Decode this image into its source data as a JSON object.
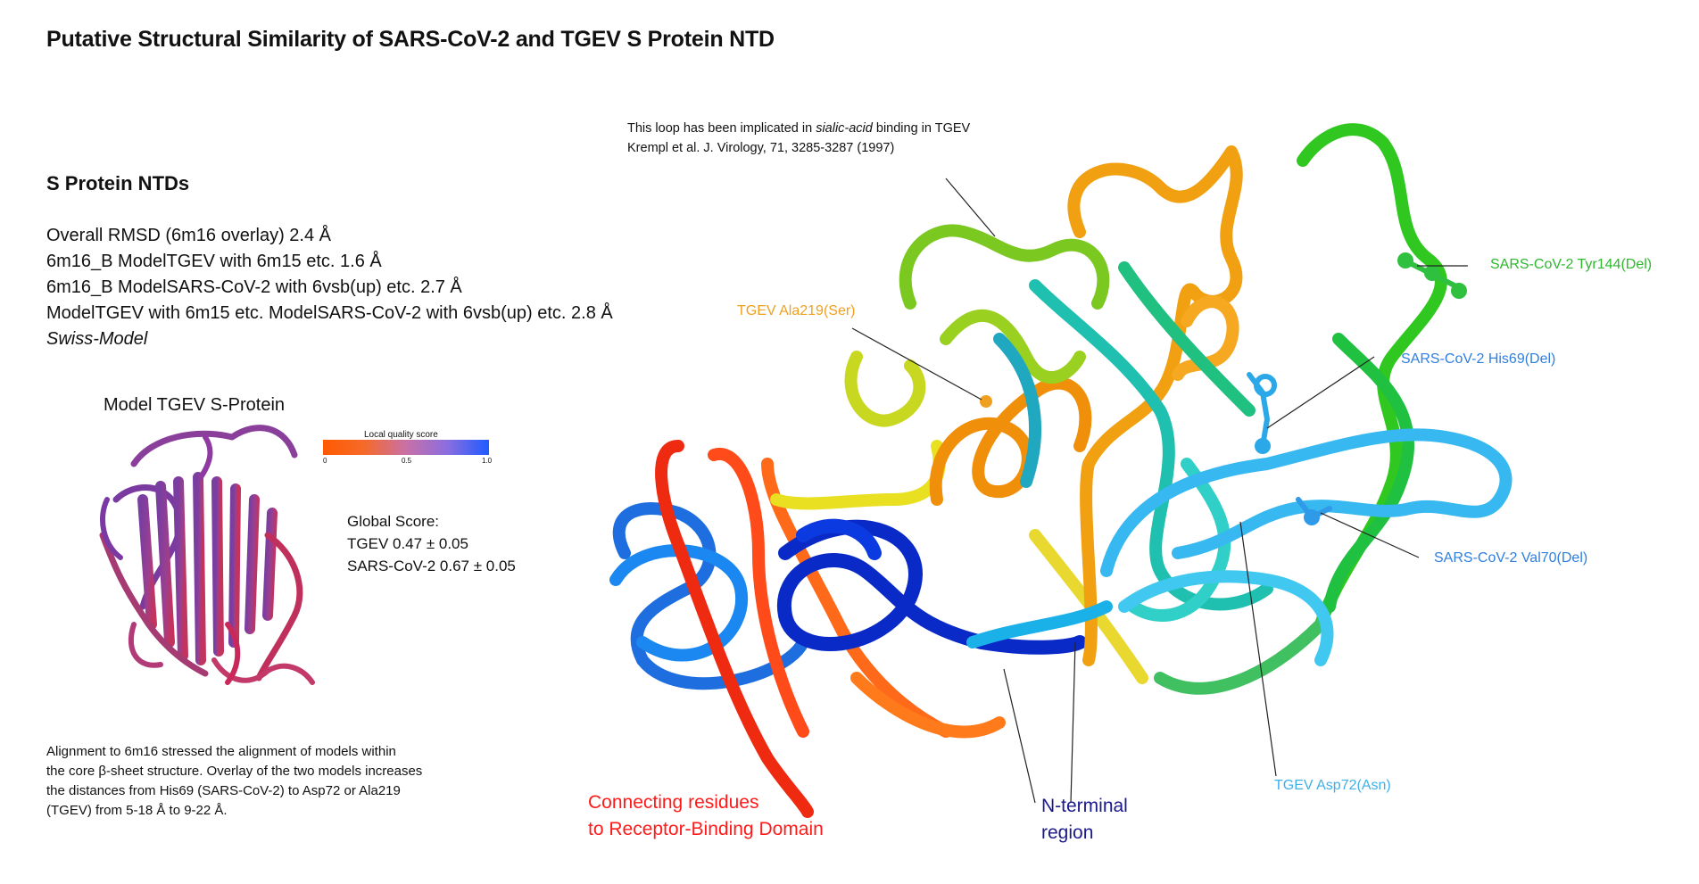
{
  "title": "Putative Structural Similarity of SARS-CoV-2 and TGEV S Protein NTD",
  "ntds_heading": "S Protein NTDs",
  "stats": {
    "line1": "Overall RMSD (6m16 overlay) 2.4 Å",
    "line2": "6m16_B ModelTGEV with 6m15 etc. 1.6 Å",
    "line3": "6m16_B ModelSARS-CoV-2 with 6vsb(up) etc. 2.7 Å",
    "line4": "ModelTGEV with 6m15 etc. ModelSARS-CoV-2 with 6vsb(up) etc. 2.8 Å",
    "line5": "Swiss-Model"
  },
  "model_panel": {
    "title": "Model TGEV S-Protein",
    "quality_label": "Local quality score",
    "tick_0": "0",
    "tick_05": "0.5",
    "tick_1": "1.0",
    "global_title": "Global Score:",
    "global_tgev": "TGEV 0.47 ± 0.05",
    "global_sars": "SARS-CoV-2 0.67 ± 0.05",
    "colors": {
      "low": "#ff5a00",
      "high": "#1e5bff"
    }
  },
  "alignment_note": {
    "l1": "Alignment to 6m16 stressed the alignment of models within",
    "l2": "the core β-sheet structure. Overlay of the two models increases",
    "l3": "the distances from His69 (SARS-CoV-2) to Asp72 or Ala219",
    "l4": "(TGEV) from 5-18 Å to 9-22 Å."
  },
  "loop_note": {
    "l1_pre": "This loop has been implicated in ",
    "l1_em": "sialic-acid",
    "l1_post": " binding in TGEV",
    "l2": "Krempl et al. J. Virology, 71, 3285-3287 (1997)"
  },
  "labels": {
    "tyr144": {
      "text": "SARS-CoV-2 Tyr144(Del)",
      "color": "#2db82d"
    },
    "ala219": {
      "text": "TGEV Ala219(Ser)",
      "color": "#f0a020"
    },
    "his69": {
      "text": "SARS-CoV-2 His69(Del)",
      "color": "#2f7fe0"
    },
    "val70": {
      "text": "SARS-CoV-2 Val70(Del)",
      "color": "#2f7fe0"
    },
    "asp72": {
      "text": "TGEV Asp72(Asn)",
      "color": "#3fb0e8"
    },
    "connecting_l1": "Connecting residues",
    "connecting_l2": "to Receptor-Binding Domain",
    "connecting_color": "#ff1a1a",
    "nterm_l1": "N-terminal",
    "nterm_l2": "region",
    "nterm_color": "#1a1a8c"
  }
}
